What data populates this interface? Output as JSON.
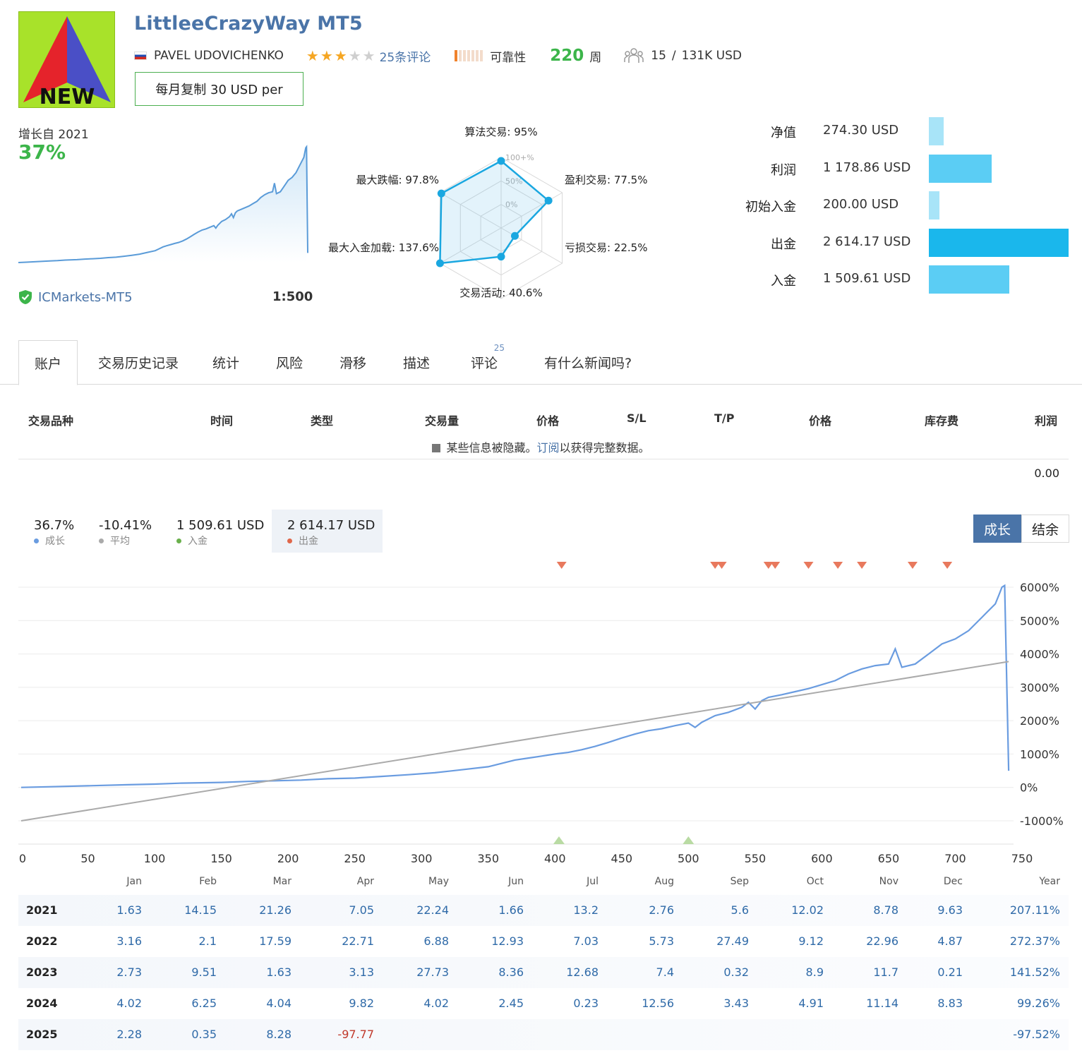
{
  "signal": {
    "logo_text": "NEW",
    "title": "LittleeCrazyWay MT5",
    "author": "PAVEL UDOVICHENKO",
    "rating_stars": 3,
    "rating_max": 5,
    "reviews": "25条评论",
    "reliability_label": "可靠性",
    "reliability_level": 1,
    "weeks_num": "220",
    "weeks_unit": "周",
    "subscribers": "15",
    "subscribers_sep": "/",
    "subscribers_funds": "131K USD",
    "subscribe_button": "每月复制 30 USD per"
  },
  "growth": {
    "label": "增长自 2021",
    "value": "37%",
    "broker": "ICMarkets-MT5",
    "leverage": "1:500"
  },
  "radar": {
    "scale_labels": [
      "100+%",
      "50%",
      "0%"
    ],
    "axes": [
      {
        "label": "算法交易: 95%",
        "value": 95
      },
      {
        "label": "盈利交易: 77.5%",
        "value": 77.5
      },
      {
        "label": "亏损交易: 22.5%",
        "value": 22.5
      },
      {
        "label": "交易活动: 40.6%",
        "value": 40.6
      },
      {
        "label": "最大入金加载: 137.6%",
        "value": 137.6
      },
      {
        "label": "最大跌幅: 97.8%",
        "value": 97.8
      }
    ]
  },
  "balance": [
    {
      "label": "净值",
      "value": "274.30 USD",
      "amount": 274.3,
      "color": "#a8e4f8"
    },
    {
      "label": "利润",
      "value": "1 178.86 USD",
      "amount": 1178.86,
      "color": "#5bcdf4"
    },
    {
      "label": "初始入金",
      "value": "200.00 USD",
      "amount": 200.0,
      "color": "#a8e4f8"
    },
    {
      "label": "出金",
      "value": "2 614.17 USD",
      "amount": 2614.17,
      "color": "#1ab7ec"
    },
    {
      "label": "入金",
      "value": "1 509.61 USD",
      "amount": 1509.61,
      "color": "#5bcdf4"
    }
  ],
  "tabs": [
    {
      "label": "账户",
      "active": true
    },
    {
      "label": "交易历史记录"
    },
    {
      "label": "统计"
    },
    {
      "label": "风险"
    },
    {
      "label": "滑移"
    },
    {
      "label": "描述"
    },
    {
      "label": "评论",
      "badge": "25"
    },
    {
      "label": "有什么新闻吗?"
    }
  ],
  "trades": {
    "headers": [
      "交易品种",
      "时间",
      "类型",
      "交易量",
      "价格",
      "S/L",
      "T/P",
      "价格",
      "库存费",
      "利润"
    ],
    "hidden_note_prefix": "某些信息被隐藏。",
    "hidden_note_link": "订阅",
    "hidden_note_suffix": "以获得完整数据。",
    "total_profit": "0.00"
  },
  "stats": [
    {
      "value": "36.7%",
      "label": "成长",
      "color": "#6a9ce0"
    },
    {
      "value": "-10.41%",
      "label": "平均",
      "color": "#aaaaaa"
    },
    {
      "value": "1 509.61 USD",
      "label": "入金",
      "color": "#6ab04c"
    },
    {
      "value": "2 614.17 USD",
      "label": "出金",
      "color": "#e0674a"
    }
  ],
  "chart_toggle": {
    "growth": "成长",
    "balance": "结余"
  },
  "chart_data": {
    "type": "line",
    "x_ticks": [
      "0",
      "50",
      "100",
      "150",
      "200",
      "250",
      "300",
      "350",
      "400",
      "450",
      "500",
      "550",
      "600",
      "650",
      "700",
      "750"
    ],
    "y_ticks": [
      "6000%",
      "5000%",
      "4000%",
      "3000%",
      "2000%",
      "1000%",
      "0%",
      "-1000%"
    ],
    "xlim": [
      0,
      750
    ],
    "ylim": [
      -1000,
      6000
    ],
    "series": [
      {
        "name": "成长",
        "color": "#6a9ce0",
        "x": [
          0,
          20,
          50,
          80,
          100,
          120,
          150,
          170,
          190,
          210,
          230,
          250,
          270,
          290,
          310,
          330,
          350,
          360,
          370,
          380,
          390,
          400,
          410,
          420,
          430,
          440,
          450,
          460,
          470,
          480,
          490,
          500,
          505,
          510,
          520,
          530,
          540,
          545,
          550,
          555,
          560,
          570,
          580,
          590,
          600,
          610,
          620,
          630,
          640,
          650,
          655,
          660,
          670,
          680,
          690,
          700,
          710,
          720,
          730,
          733,
          735,
          737,
          740
        ],
        "y": [
          0,
          20,
          50,
          80,
          100,
          130,
          150,
          180,
          200,
          220,
          260,
          280,
          330,
          380,
          440,
          530,
          620,
          720,
          820,
          880,
          940,
          1000,
          1050,
          1130,
          1230,
          1350,
          1480,
          1600,
          1700,
          1760,
          1850,
          1930,
          1800,
          1950,
          2150,
          2250,
          2400,
          2550,
          2350,
          2600,
          2700,
          2780,
          2870,
          2960,
          3080,
          3200,
          3400,
          3550,
          3650,
          3700,
          4150,
          3600,
          3700,
          4000,
          4300,
          4450,
          4700,
          5100,
          5500,
          5800,
          6000,
          6050,
          500
        ]
      },
      {
        "name": "平均",
        "color": "#aaaaaa",
        "x": [
          0,
          740
        ],
        "y": [
          -1000,
          3770
        ]
      }
    ],
    "withdrawal_markers_x": [
      405,
      520,
      525,
      560,
      565,
      590,
      612,
      630,
      668,
      694
    ],
    "deposit_markers_x": [
      403,
      500
    ]
  },
  "monthly": {
    "headers": [
      "Jan",
      "Feb",
      "Mar",
      "Apr",
      "May",
      "Jun",
      "Jul",
      "Aug",
      "Sep",
      "Oct",
      "Nov",
      "Dec",
      "Year"
    ],
    "rows": [
      {
        "year": "2021",
        "values": [
          "1.63",
          "14.15",
          "21.26",
          "7.05",
          "22.24",
          "1.66",
          "13.2",
          "2.76",
          "5.6",
          "12.02",
          "8.78",
          "9.63"
        ],
        "total": "207.11%"
      },
      {
        "year": "2022",
        "values": [
          "3.16",
          "2.1",
          "17.59",
          "22.71",
          "6.88",
          "12.93",
          "7.03",
          "5.73",
          "27.49",
          "9.12",
          "22.96",
          "4.87"
        ],
        "total": "272.37%"
      },
      {
        "year": "2023",
        "values": [
          "2.73",
          "9.51",
          "1.63",
          "3.13",
          "27.73",
          "8.36",
          "12.68",
          "7.4",
          "0.32",
          "8.9",
          "11.7",
          "0.21"
        ],
        "total": "141.52%"
      },
      {
        "year": "2024",
        "values": [
          "4.02",
          "6.25",
          "4.04",
          "9.82",
          "4.02",
          "2.45",
          "0.23",
          "12.56",
          "3.43",
          "4.91",
          "11.14",
          "8.83"
        ],
        "total": "99.26%"
      },
      {
        "year": "2025",
        "values": [
          "2.28",
          "0.35",
          "8.28",
          "-97.77",
          "",
          "",
          "",
          "",
          "",
          "",
          "",
          ""
        ],
        "total": "-97.52%"
      }
    ]
  }
}
